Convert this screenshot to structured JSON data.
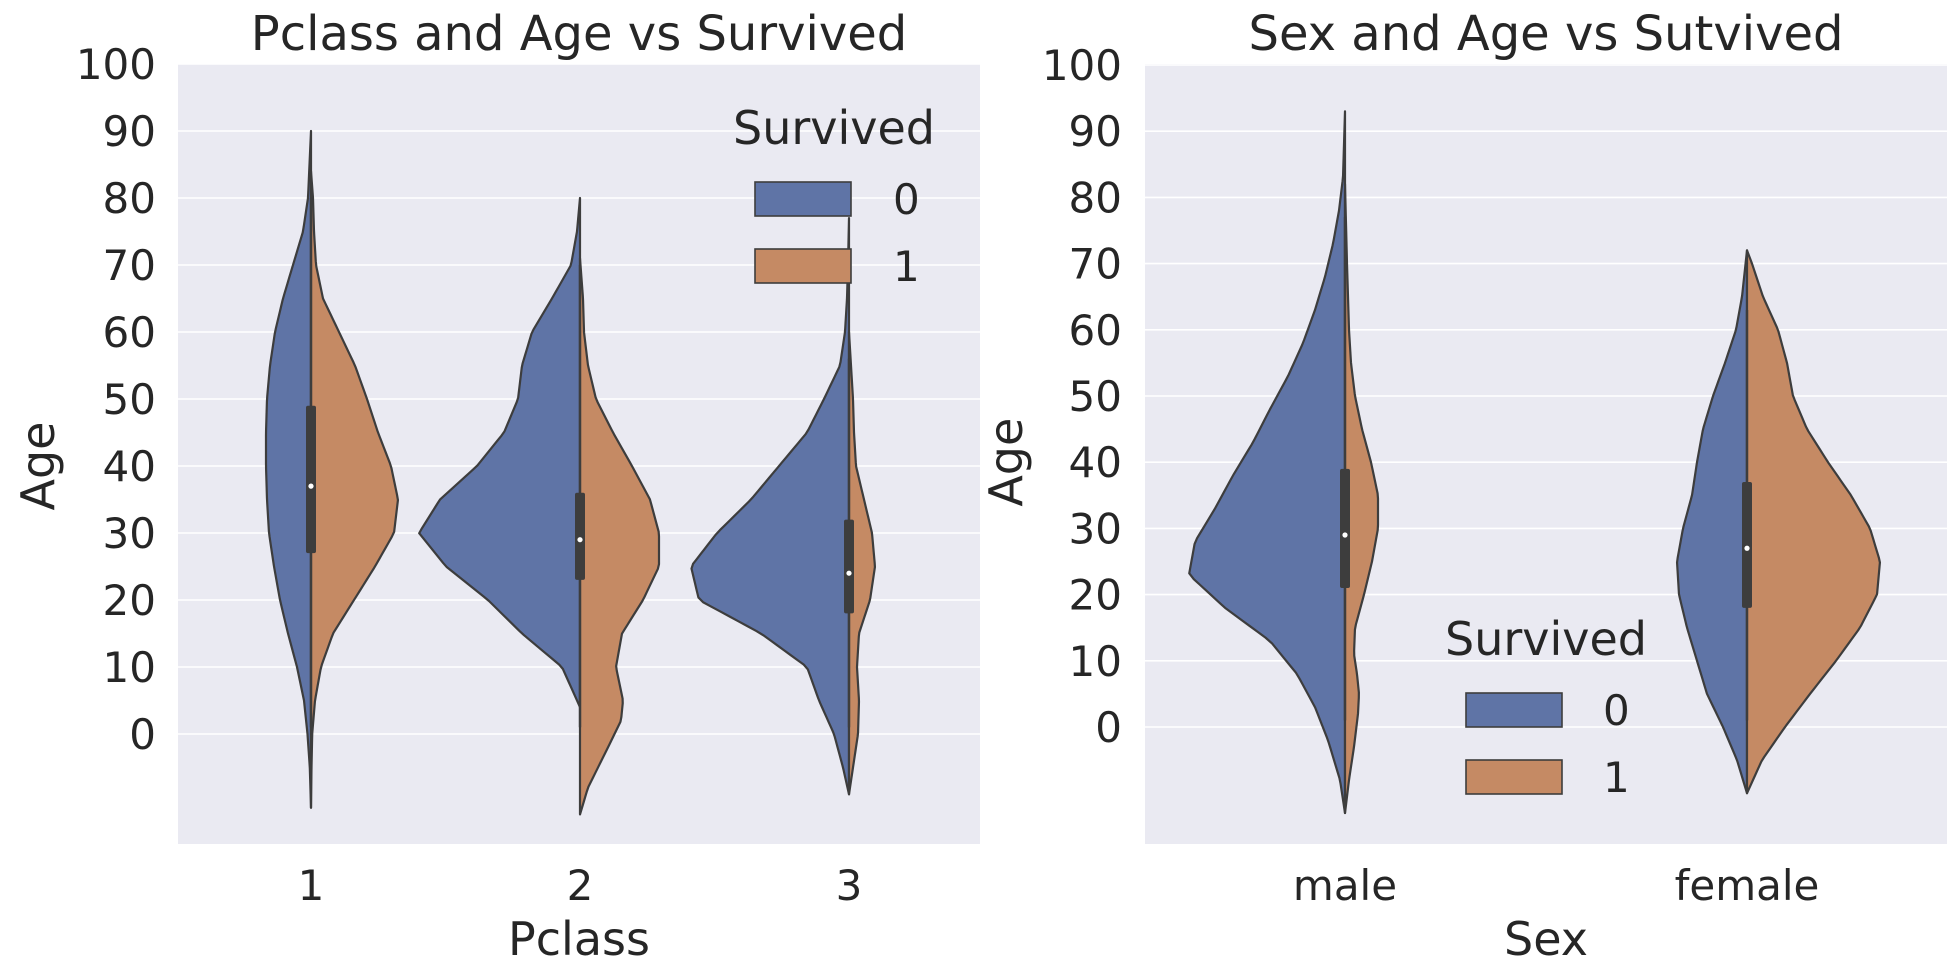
{
  "colors": {
    "survived_0": "#5f74a6",
    "survived_1": "#c58a64",
    "plot_bg": "#eaeaf2",
    "grid": "#ffffff",
    "outline": "#3d3d3d",
    "text": "#262626"
  },
  "chart_data": [
    {
      "type": "violin",
      "split": true,
      "title": "Pclass and Age vs Survived",
      "xlabel": "Pclass",
      "ylabel": "Age",
      "categories": [
        "1",
        "2",
        "3"
      ],
      "yticks": [
        "0",
        "10",
        "20",
        "30",
        "40",
        "50",
        "60",
        "70",
        "80",
        "90",
        "100"
      ],
      "ylim": [
        -16,
        100
      ],
      "grid": true,
      "legend": {
        "title": "Survived",
        "entries": [
          "0",
          "1"
        ],
        "placement": "upper-right"
      },
      "series": [
        {
          "name": "0",
          "side": "left",
          "violins": [
            {
              "category": "1",
              "min": -11,
              "max": 90,
              "profile": [
                [
                  -11,
                  0
                ],
                [
                  -5,
                  1.2
                ],
                [
                  0,
                  3.5
                ],
                [
                  5,
                  7
                ],
                [
                  10,
                  14
                ],
                [
                  15,
                  23
                ],
                [
                  20,
                  31
                ],
                [
                  25,
                  37
                ],
                [
                  30,
                  42
                ],
                [
                  35,
                  44
                ],
                [
                  40,
                  45
                ],
                [
                  45,
                  45
                ],
                [
                  50,
                  44
                ],
                [
                  55,
                  41
                ],
                [
                  60,
                  36
                ],
                [
                  65,
                  28
                ],
                [
                  70,
                  18
                ],
                [
                  75,
                  8
                ],
                [
                  80,
                  3
                ],
                [
                  85,
                  1.5
                ],
                [
                  90,
                  0
                ]
              ]
            },
            {
              "category": "2",
              "min": 4,
              "max": 80,
              "profile": [
                [
                  4,
                  0
                ],
                [
                  10,
                  18
                ],
                [
                  15,
                  58
                ],
                [
                  20,
                  92
                ],
                [
                  25,
                  134
                ],
                [
                  30,
                  161
                ],
                [
                  35,
                  140
                ],
                [
                  40,
                  103
                ],
                [
                  45,
                  76
                ],
                [
                  50,
                  62
                ],
                [
                  55,
                  58
                ],
                [
                  60,
                  48
                ],
                [
                  65,
                  28
                ],
                [
                  70,
                  9
                ],
                [
                  75,
                  3
                ],
                [
                  80,
                  0
                ]
              ]
            },
            {
              "category": "3",
              "min": -9,
              "max": 77,
              "profile": [
                [
                  -9,
                  0
                ],
                [
                  -5,
                  6
                ],
                [
                  0,
                  15
                ],
                [
                  5,
                  30
                ],
                [
                  10,
                  42
                ],
                [
                  15,
                  88
                ],
                [
                  20,
                  150
                ],
                [
                  25,
                  158
                ],
                [
                  30,
                  132
                ],
                [
                  35,
                  98
                ],
                [
                  40,
                  70
                ],
                [
                  45,
                  42
                ],
                [
                  50,
                  25
                ],
                [
                  55,
                  9
                ],
                [
                  60,
                  4
                ],
                [
                  65,
                  2
                ],
                [
                  70,
                  1
                ],
                [
                  77,
                  0
                ]
              ]
            }
          ]
        },
        {
          "name": "1",
          "side": "right",
          "violins": [
            {
              "category": "1",
              "min": -11,
              "max": 84,
              "profile": [
                [
                  -11,
                  0
                ],
                [
                  -5,
                  0.5
                ],
                [
                  0,
                  1.2
                ],
                [
                  5,
                  4
                ],
                [
                  10,
                  10
                ],
                [
                  15,
                  22
                ],
                [
                  20,
                  43
                ],
                [
                  25,
                  64
                ],
                [
                  30,
                  83
                ],
                [
                  35,
                  87
                ],
                [
                  40,
                  80
                ],
                [
                  45,
                  67
                ],
                [
                  50,
                  56
                ],
                [
                  55,
                  44
                ],
                [
                  60,
                  28
                ],
                [
                  65,
                  12
                ],
                [
                  70,
                  5
                ],
                [
                  75,
                  3
                ],
                [
                  80,
                  2
                ],
                [
                  84,
                  0
                ]
              ]
            },
            {
              "category": "2",
              "min": -12,
              "max": 71,
              "profile": [
                [
                  -12,
                  0
                ],
                [
                  -8,
                  8
                ],
                [
                  -2,
                  28
                ],
                [
                  2,
                  41
                ],
                [
                  5,
                  43
                ],
                [
                  10,
                  36
                ],
                [
                  15,
                  42
                ],
                [
                  20,
                  63
                ],
                [
                  25,
                  79
                ],
                [
                  30,
                  79
                ],
                [
                  35,
                  70
                ],
                [
                  40,
                  52
                ],
                [
                  45,
                  33
                ],
                [
                  50,
                  16
                ],
                [
                  55,
                  8
                ],
                [
                  60,
                  4
                ],
                [
                  65,
                  3
                ],
                [
                  71,
                  0
                ]
              ]
            },
            {
              "category": "3",
              "min": -9,
              "max": 60,
              "profile": [
                [
                  -9,
                  0
                ],
                [
                  -5,
                  4
                ],
                [
                  0,
                  9
                ],
                [
                  5,
                  10
                ],
                [
                  10,
                  8
                ],
                [
                  15,
                  10
                ],
                [
                  20,
                  21
                ],
                [
                  25,
                  26
                ],
                [
                  30,
                  23
                ],
                [
                  35,
                  15
                ],
                [
                  40,
                  7
                ],
                [
                  45,
                  5
                ],
                [
                  50,
                  4
                ],
                [
                  55,
                  2
                ],
                [
                  60,
                  0
                ]
              ]
            }
          ]
        }
      ],
      "inner_box": [
        {
          "category": "1",
          "q1": 27,
          "median": 37,
          "q3": 49,
          "whisker_low": 1,
          "whisker_high": 80
        },
        {
          "category": "2",
          "q1": 23,
          "median": 29,
          "q3": 36,
          "whisker_low": 1,
          "whisker_high": 70
        },
        {
          "category": "3",
          "q1": 18,
          "median": 24,
          "q3": 32,
          "whisker_low": 1,
          "whisker_high": 56
        }
      ]
    },
    {
      "type": "violin",
      "split": true,
      "title": "Sex and Age vs Sutvived",
      "xlabel": "Sex",
      "ylabel": "Age",
      "categories": [
        "male",
        "female"
      ],
      "yticks": [
        "0",
        "10",
        "20",
        "30",
        "40",
        "50",
        "60",
        "70",
        "80",
        "90",
        "100"
      ],
      "ylim": [
        -18,
        100
      ],
      "grid": true,
      "legend": {
        "title": "Survived",
        "entries": [
          "0",
          "1"
        ],
        "placement": "lower-center"
      },
      "series": [
        {
          "name": "0",
          "side": "left",
          "violins": [
            {
              "category": "male",
              "min": -13,
              "max": 93,
              "profile": [
                [
                  -13,
                  0
                ],
                [
                  -8,
                  5
                ],
                [
                  -2,
                  17
                ],
                [
                  3,
                  30
                ],
                [
                  8,
                  48
                ],
                [
                  13,
                  75
                ],
                [
                  18,
                  120
                ],
                [
                  23,
                  156
                ],
                [
                  28,
                  150
                ],
                [
                  33,
                  130
                ],
                [
                  38,
                  112
                ],
                [
                  43,
                  92
                ],
                [
                  48,
                  75
                ],
                [
                  53,
                  57
                ],
                [
                  58,
                  42
                ],
                [
                  63,
                  30
                ],
                [
                  68,
                  20
                ],
                [
                  73,
                  12
                ],
                [
                  78,
                  6
                ],
                [
                  83,
                  2
                ],
                [
                  88,
                  1
                ],
                [
                  93,
                  0
                ]
              ]
            },
            {
              "category": "female",
              "min": -10,
              "max": 72,
              "profile": [
                [
                  -10,
                  0
                ],
                [
                  -5,
                  10
                ],
                [
                  0,
                  24
                ],
                [
                  5,
                  40
                ],
                [
                  10,
                  50
                ],
                [
                  15,
                  60
                ],
                [
                  20,
                  68
                ],
                [
                  25,
                  70
                ],
                [
                  30,
                  64
                ],
                [
                  35,
                  55
                ],
                [
                  40,
                  50
                ],
                [
                  45,
                  44
                ],
                [
                  50,
                  34
                ],
                [
                  55,
                  22
                ],
                [
                  60,
                  11
                ],
                [
                  65,
                  5
                ],
                [
                  72,
                  0
                ]
              ]
            }
          ]
        },
        {
          "name": "1",
          "side": "right",
          "violins": [
            {
              "category": "male",
              "min": -13,
              "max": 82,
              "profile": [
                [
                  -13,
                  0
                ],
                [
                  -8,
                  4
                ],
                [
                  -3,
                  9
                ],
                [
                  2,
                  13
                ],
                [
                  5,
                  14
                ],
                [
                  8,
                  12
                ],
                [
                  11,
                  9
                ],
                [
                  15,
                  10
                ],
                [
                  20,
                  19
                ],
                [
                  25,
                  27
                ],
                [
                  30,
                  33
                ],
                [
                  35,
                  33
                ],
                [
                  40,
                  26
                ],
                [
                  45,
                  17
                ],
                [
                  50,
                  10
                ],
                [
                  55,
                  6
                ],
                [
                  60,
                  4
                ],
                [
                  70,
                  2
                ],
                [
                  82,
                  0
                ]
              ]
            },
            {
              "category": "female",
              "min": -10,
              "max": 72,
              "profile": [
                [
                  -10,
                  0
                ],
                [
                  -5,
                  15
                ],
                [
                  0,
                  38
                ],
                [
                  5,
                  63
                ],
                [
                  10,
                  89
                ],
                [
                  15,
                  113
                ],
                [
                  20,
                  130
                ],
                [
                  25,
                  133
                ],
                [
                  30,
                  123
                ],
                [
                  35,
                  104
                ],
                [
                  40,
                  81
                ],
                [
                  45,
                  60
                ],
                [
                  50,
                  46
                ],
                [
                  55,
                  40
                ],
                [
                  60,
                  31
                ],
                [
                  65,
                  16
                ],
                [
                  70,
                  5
                ],
                [
                  72,
                  0
                ]
              ]
            }
          ]
        }
      ],
      "inner_box": [
        {
          "category": "male",
          "q1": 21,
          "median": 29,
          "q3": 39,
          "whisker_low": 1,
          "whisker_high": 77
        },
        {
          "category": "female",
          "q1": 18,
          "median": 27,
          "q3": 37,
          "whisker_low": 1,
          "whisker_high": 63
        }
      ]
    }
  ]
}
